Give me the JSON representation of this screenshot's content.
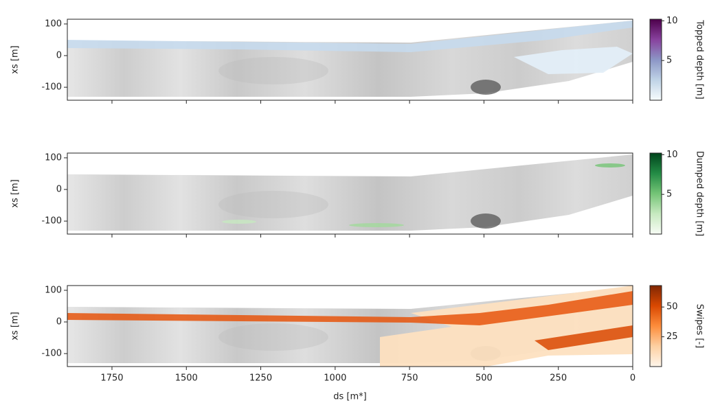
{
  "chart_data": [
    {
      "type": "heatmap",
      "ylabel": "xs [m]",
      "xlim": [
        1900,
        0
      ],
      "ylim": [
        -141,
        115
      ],
      "yticks": [
        -100,
        0,
        100
      ],
      "colorbar": {
        "label": "Topped depth [m]",
        "lim": [
          0,
          10.2
        ],
        "ticks": [
          5,
          10
        ],
        "colormap": [
          "#f7fcfd",
          "#bfd3e6",
          "#8c96c6",
          "#88419d",
          "#4d004b"
        ]
      }
    },
    {
      "type": "heatmap",
      "ylabel": "xs [m]",
      "xlim": [
        1900,
        0
      ],
      "ylim": [
        -141,
        115
      ],
      "yticks": [
        -100,
        0,
        100
      ],
      "colorbar": {
        "label": "Dumped depth [m]",
        "lim": [
          0,
          10.2
        ],
        "ticks": [
          5,
          10
        ],
        "colormap": [
          "#f7fcf5",
          "#c7e9c0",
          "#74c476",
          "#238b45",
          "#00441b"
        ]
      }
    },
    {
      "type": "heatmap",
      "ylabel": "xs [m]",
      "xlabel": "ds [m*]",
      "xlim": [
        1900,
        0
      ],
      "ylim": [
        -141,
        115
      ],
      "yticks": [
        -100,
        0,
        100
      ],
      "xticks": [
        1750,
        1500,
        1250,
        1000,
        750,
        500,
        250,
        0
      ],
      "colorbar": {
        "label": "Swipes [-]",
        "lim": [
          0,
          68
        ],
        "ticks": [
          25,
          50
        ],
        "colormap": [
          "#fff5eb",
          "#fdd0a2",
          "#fd8d3c",
          "#d94801",
          "#7f2704"
        ]
      }
    }
  ]
}
